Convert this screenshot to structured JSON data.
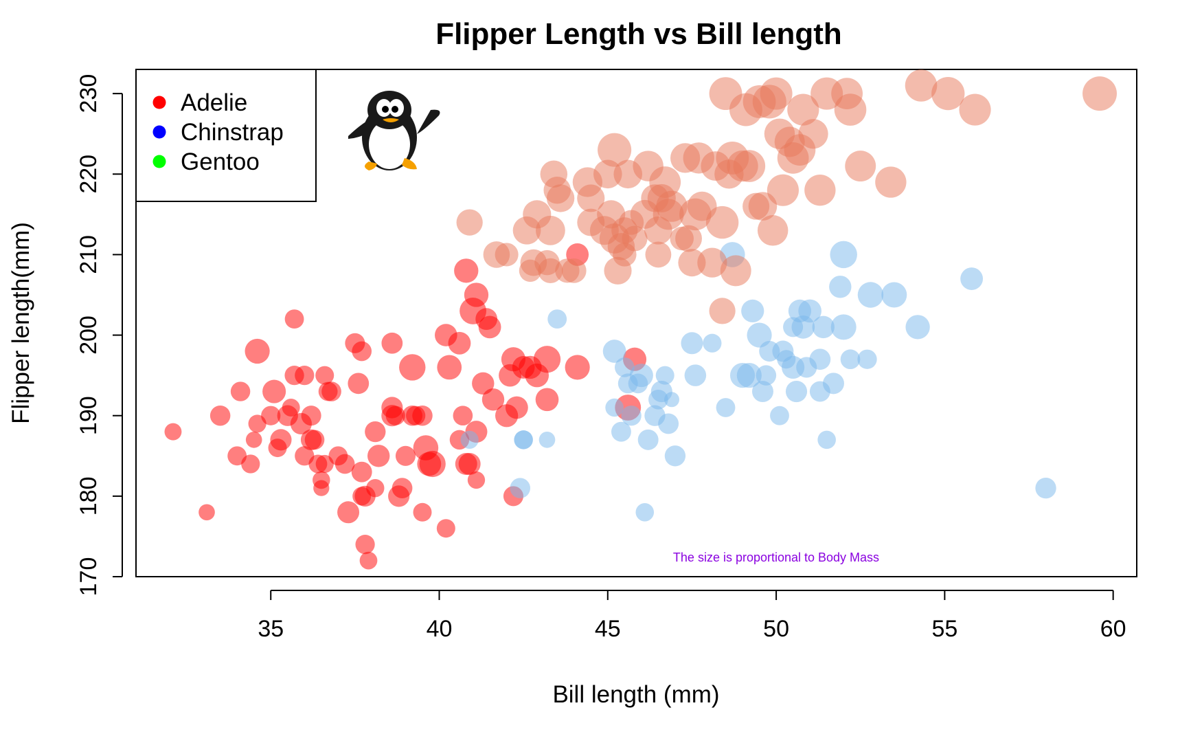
{
  "chart_data": {
    "type": "scatter",
    "title": "Flipper Length vs Bill length",
    "xlabel": "Bill length (mm)",
    "ylabel": "Flipper length(mm)",
    "xlim": [
      31,
      60.7
    ],
    "ylim": [
      170,
      233
    ],
    "xticks": [
      35,
      40,
      45,
      50,
      55,
      60
    ],
    "yticks": [
      170,
      180,
      190,
      200,
      210,
      220,
      230
    ],
    "grid": false,
    "legend_position": "top-left",
    "annotation": "The size is proportional to Body Mass",
    "annotation_color": "#8a00e0",
    "series": [
      {
        "name": "Adelie",
        "legend_color": "#ff0000",
        "point_color": "#ff0000",
        "points": [
          [
            32.1,
            188,
            3050
          ],
          [
            33.1,
            178,
            2900
          ],
          [
            33.5,
            190,
            3600
          ],
          [
            34.0,
            185,
            3400
          ],
          [
            34.1,
            193,
            3475
          ],
          [
            34.4,
            184,
            3325
          ],
          [
            34.5,
            187,
            2900
          ],
          [
            34.6,
            189,
            3200
          ],
          [
            34.6,
            198,
            4400
          ],
          [
            35.0,
            190,
            3450
          ],
          [
            35.1,
            193,
            4150
          ],
          [
            35.2,
            186,
            3300
          ],
          [
            35.3,
            187,
            3800
          ],
          [
            35.5,
            190,
            3700
          ],
          [
            35.6,
            191,
            3175
          ],
          [
            35.7,
            195,
            3450
          ],
          [
            35.7,
            202,
            3400
          ],
          [
            35.9,
            189,
            3800
          ],
          [
            36.0,
            185,
            3450
          ],
          [
            36.0,
            195,
            3450
          ],
          [
            36.2,
            187,
            3700
          ],
          [
            36.2,
            190,
            3550
          ],
          [
            36.3,
            187,
            3500
          ],
          [
            36.4,
            184,
            3300
          ],
          [
            36.5,
            182,
            3125
          ],
          [
            36.5,
            181,
            2850
          ],
          [
            36.6,
            184,
            3200
          ],
          [
            36.6,
            195,
            3300
          ],
          [
            36.7,
            193,
            3400
          ],
          [
            36.8,
            193,
            3500
          ],
          [
            37.0,
            185,
            3400
          ],
          [
            37.2,
            184,
            3500
          ],
          [
            37.3,
            178,
            3900
          ],
          [
            37.5,
            199,
            3550
          ],
          [
            37.6,
            194,
            3750
          ],
          [
            37.7,
            180,
            3300
          ],
          [
            37.7,
            183,
            3650
          ],
          [
            37.7,
            198,
            3500
          ],
          [
            37.8,
            174,
            3450
          ],
          [
            37.8,
            180,
            3700
          ],
          [
            37.9,
            172,
            3150
          ],
          [
            38.1,
            188,
            3700
          ],
          [
            38.1,
            181,
            3225
          ],
          [
            38.2,
            185,
            3950
          ],
          [
            38.6,
            191,
            3800
          ],
          [
            38.6,
            199,
            3750
          ],
          [
            38.7,
            190,
            3450
          ],
          [
            38.8,
            180,
            3800
          ],
          [
            38.9,
            181,
            3625
          ],
          [
            39.0,
            185,
            3550
          ],
          [
            39.2,
            190,
            3600
          ],
          [
            39.2,
            196,
            4675
          ],
          [
            39.3,
            190,
            3450
          ],
          [
            39.5,
            178,
            3300
          ],
          [
            39.6,
            186,
            4450
          ],
          [
            39.7,
            184,
            4250
          ],
          [
            39.8,
            184,
            4650
          ],
          [
            40.2,
            176,
            3300
          ],
          [
            40.2,
            200,
            3975
          ],
          [
            40.3,
            196,
            4350
          ],
          [
            40.6,
            187,
            3475
          ],
          [
            40.6,
            199,
            4000
          ],
          [
            40.7,
            190,
            3500
          ],
          [
            40.8,
            208,
            4300
          ],
          [
            40.9,
            184,
            3900
          ],
          [
            41.0,
            203,
            4725
          ],
          [
            41.1,
            182,
            3100
          ],
          [
            41.1,
            205,
            4300
          ],
          [
            41.1,
            188,
            3900
          ],
          [
            41.3,
            194,
            3950
          ],
          [
            41.4,
            202,
            3875
          ],
          [
            41.5,
            201,
            4000
          ],
          [
            41.6,
            192,
            3950
          ],
          [
            42.0,
            190,
            4050
          ],
          [
            42.1,
            195,
            4000
          ],
          [
            42.2,
            180,
            3550
          ],
          [
            42.2,
            197,
            4275
          ],
          [
            42.3,
            191,
            4000
          ],
          [
            42.5,
            196,
            4000
          ],
          [
            42.7,
            196,
            4075
          ],
          [
            42.9,
            195,
            4200
          ],
          [
            43.2,
            197,
            4775
          ],
          [
            43.2,
            192,
            4100
          ],
          [
            44.1,
            196,
            4400
          ],
          [
            44.1,
            210,
            4000
          ],
          [
            45.8,
            197,
            4150
          ],
          [
            45.6,
            191,
            4600
          ],
          [
            38.6,
            190,
            3800
          ],
          [
            39.5,
            190,
            3600
          ],
          [
            40.8,
            184,
            3900
          ]
        ]
      },
      {
        "name": "Chinstrap",
        "legend_color": "#0000ff",
        "point_color": "#7ab8ec",
        "points": [
          [
            40.9,
            187,
            3200
          ],
          [
            42.4,
            181,
            3600
          ],
          [
            42.5,
            187,
            3350
          ],
          [
            42.5,
            187,
            3350
          ],
          [
            43.2,
            187,
            2900
          ],
          [
            43.5,
            202,
            3400
          ],
          [
            45.2,
            191,
            3250
          ],
          [
            45.2,
            198,
            4100
          ],
          [
            45.4,
            188,
            3525
          ],
          [
            45.5,
            196,
            3500
          ],
          [
            45.6,
            194,
            3525
          ],
          [
            45.7,
            190,
            3575
          ],
          [
            45.9,
            194,
            3500
          ],
          [
            46.1,
            178,
            3250
          ],
          [
            46.2,
            187,
            3650
          ],
          [
            46.4,
            190,
            3700
          ],
          [
            46.5,
            192,
            3500
          ],
          [
            46.6,
            193,
            3800
          ],
          [
            46.7,
            195,
            3300
          ],
          [
            46.8,
            189,
            3650
          ],
          [
            46.9,
            192,
            2700
          ],
          [
            47.0,
            185,
            3700
          ],
          [
            47.5,
            199,
            3900
          ],
          [
            47.6,
            195,
            3850
          ],
          [
            48.1,
            199,
            3325
          ],
          [
            48.5,
            191,
            3400
          ],
          [
            48.7,
            210,
            4450
          ],
          [
            49.0,
            195,
            4400
          ],
          [
            49.2,
            195,
            4400
          ],
          [
            49.3,
            203,
            4050
          ],
          [
            49.5,
            200,
            4400
          ],
          [
            49.6,
            193,
            3775
          ],
          [
            49.7,
            195,
            3600
          ],
          [
            49.8,
            198,
            3675
          ],
          [
            50.1,
            190,
            3400
          ],
          [
            50.2,
            198,
            3775
          ],
          [
            50.3,
            197,
            3300
          ],
          [
            50.5,
            196,
            4050
          ],
          [
            50.5,
            201,
            3550
          ],
          [
            50.6,
            193,
            3800
          ],
          [
            50.7,
            203,
            4050
          ],
          [
            50.8,
            201,
            4100
          ],
          [
            50.9,
            196,
            3675
          ],
          [
            51.0,
            203,
            4100
          ],
          [
            51.3,
            193,
            3650
          ],
          [
            51.3,
            197,
            3750
          ],
          [
            51.4,
            201,
            3950
          ],
          [
            51.5,
            187,
            3250
          ],
          [
            51.7,
            194,
            3775
          ],
          [
            51.9,
            206,
            3950
          ],
          [
            52.0,
            201,
            4500
          ],
          [
            52.0,
            210,
            4800
          ],
          [
            52.2,
            197,
            3500
          ],
          [
            52.7,
            197,
            3450
          ],
          [
            52.8,
            205,
            4550
          ],
          [
            53.5,
            205,
            4500
          ],
          [
            54.2,
            201,
            4300
          ],
          [
            55.8,
            207,
            4000
          ],
          [
            58.0,
            181,
            3700
          ],
          [
            46.0,
            195,
            4150
          ]
        ]
      },
      {
        "name": "Gentoo",
        "legend_color": "#00ff00",
        "point_color": "#e8785a",
        "points": [
          [
            40.9,
            214,
            4650
          ],
          [
            41.7,
            210,
            4700
          ],
          [
            42.0,
            210,
            4150
          ],
          [
            42.6,
            213,
            4950
          ],
          [
            42.7,
            208,
            3950
          ],
          [
            42.8,
            209,
            4700
          ],
          [
            42.9,
            215,
            5000
          ],
          [
            43.2,
            209,
            4450
          ],
          [
            43.3,
            213,
            5200
          ],
          [
            43.3,
            208,
            4400
          ],
          [
            43.4,
            220,
            4800
          ],
          [
            43.5,
            218,
            4800
          ],
          [
            43.6,
            217,
            4900
          ],
          [
            43.8,
            208,
            4300
          ],
          [
            44.0,
            208,
            4350
          ],
          [
            44.4,
            219,
            5250
          ],
          [
            44.5,
            217,
            4875
          ],
          [
            44.5,
            214,
            4850
          ],
          [
            44.9,
            213,
            5100
          ],
          [
            45.0,
            220,
            5050
          ],
          [
            45.1,
            215,
            5000
          ],
          [
            45.2,
            212,
            5300
          ],
          [
            45.2,
            223,
            5950
          ],
          [
            45.3,
            208,
            4875
          ],
          [
            45.4,
            211,
            4800
          ],
          [
            45.5,
            210,
            4200
          ],
          [
            45.5,
            213,
            4650
          ],
          [
            45.6,
            220,
            5050
          ],
          [
            45.7,
            214,
            4400
          ],
          [
            45.8,
            212,
            4500
          ],
          [
            46.1,
            215,
            5100
          ],
          [
            46.2,
            221,
            5400
          ],
          [
            46.4,
            217,
            4900
          ],
          [
            46.5,
            210,
            4600
          ],
          [
            46.5,
            213,
            4950
          ],
          [
            46.6,
            217,
            5000
          ],
          [
            46.7,
            219,
            5550
          ],
          [
            46.8,
            215,
            5450
          ],
          [
            46.9,
            216,
            5500
          ],
          [
            47.2,
            212,
            4200
          ],
          [
            47.3,
            222,
            5250
          ],
          [
            47.4,
            212,
            4725
          ],
          [
            47.5,
            209,
            4875
          ],
          [
            47.6,
            215,
            5650
          ],
          [
            47.7,
            222,
            5500
          ],
          [
            47.8,
            216,
            5200
          ],
          [
            48.1,
            209,
            5250
          ],
          [
            48.2,
            221,
            5200
          ],
          [
            48.4,
            214,
            5750
          ],
          [
            48.4,
            203,
            4650
          ],
          [
            48.5,
            230,
            5800
          ],
          [
            48.6,
            220,
            5150
          ],
          [
            48.7,
            222,
            5800
          ],
          [
            48.8,
            208,
            5450
          ],
          [
            49.0,
            221,
            5500
          ],
          [
            49.1,
            228,
            5800
          ],
          [
            49.2,
            221,
            5650
          ],
          [
            49.4,
            216,
            4750
          ],
          [
            49.5,
            229,
            5800
          ],
          [
            49.6,
            216,
            5050
          ],
          [
            49.8,
            229,
            5950
          ],
          [
            49.9,
            213,
            5400
          ],
          [
            50.0,
            230,
            5700
          ],
          [
            50.1,
            225,
            5400
          ],
          [
            50.2,
            218,
            5600
          ],
          [
            50.4,
            224,
            5350
          ],
          [
            50.5,
            222,
            5550
          ],
          [
            50.7,
            223,
            5550
          ],
          [
            50.8,
            228,
            5600
          ],
          [
            51.1,
            225,
            5250
          ],
          [
            51.3,
            218,
            5500
          ],
          [
            51.5,
            230,
            5700
          ],
          [
            52.1,
            230,
            5550
          ],
          [
            52.2,
            228,
            5650
          ],
          [
            52.5,
            221,
            5450
          ],
          [
            53.4,
            219,
            5500
          ],
          [
            54.3,
            231,
            5650
          ],
          [
            55.1,
            230,
            5850
          ],
          [
            55.9,
            228,
            5600
          ],
          [
            59.6,
            230,
            6050
          ]
        ]
      }
    ]
  }
}
